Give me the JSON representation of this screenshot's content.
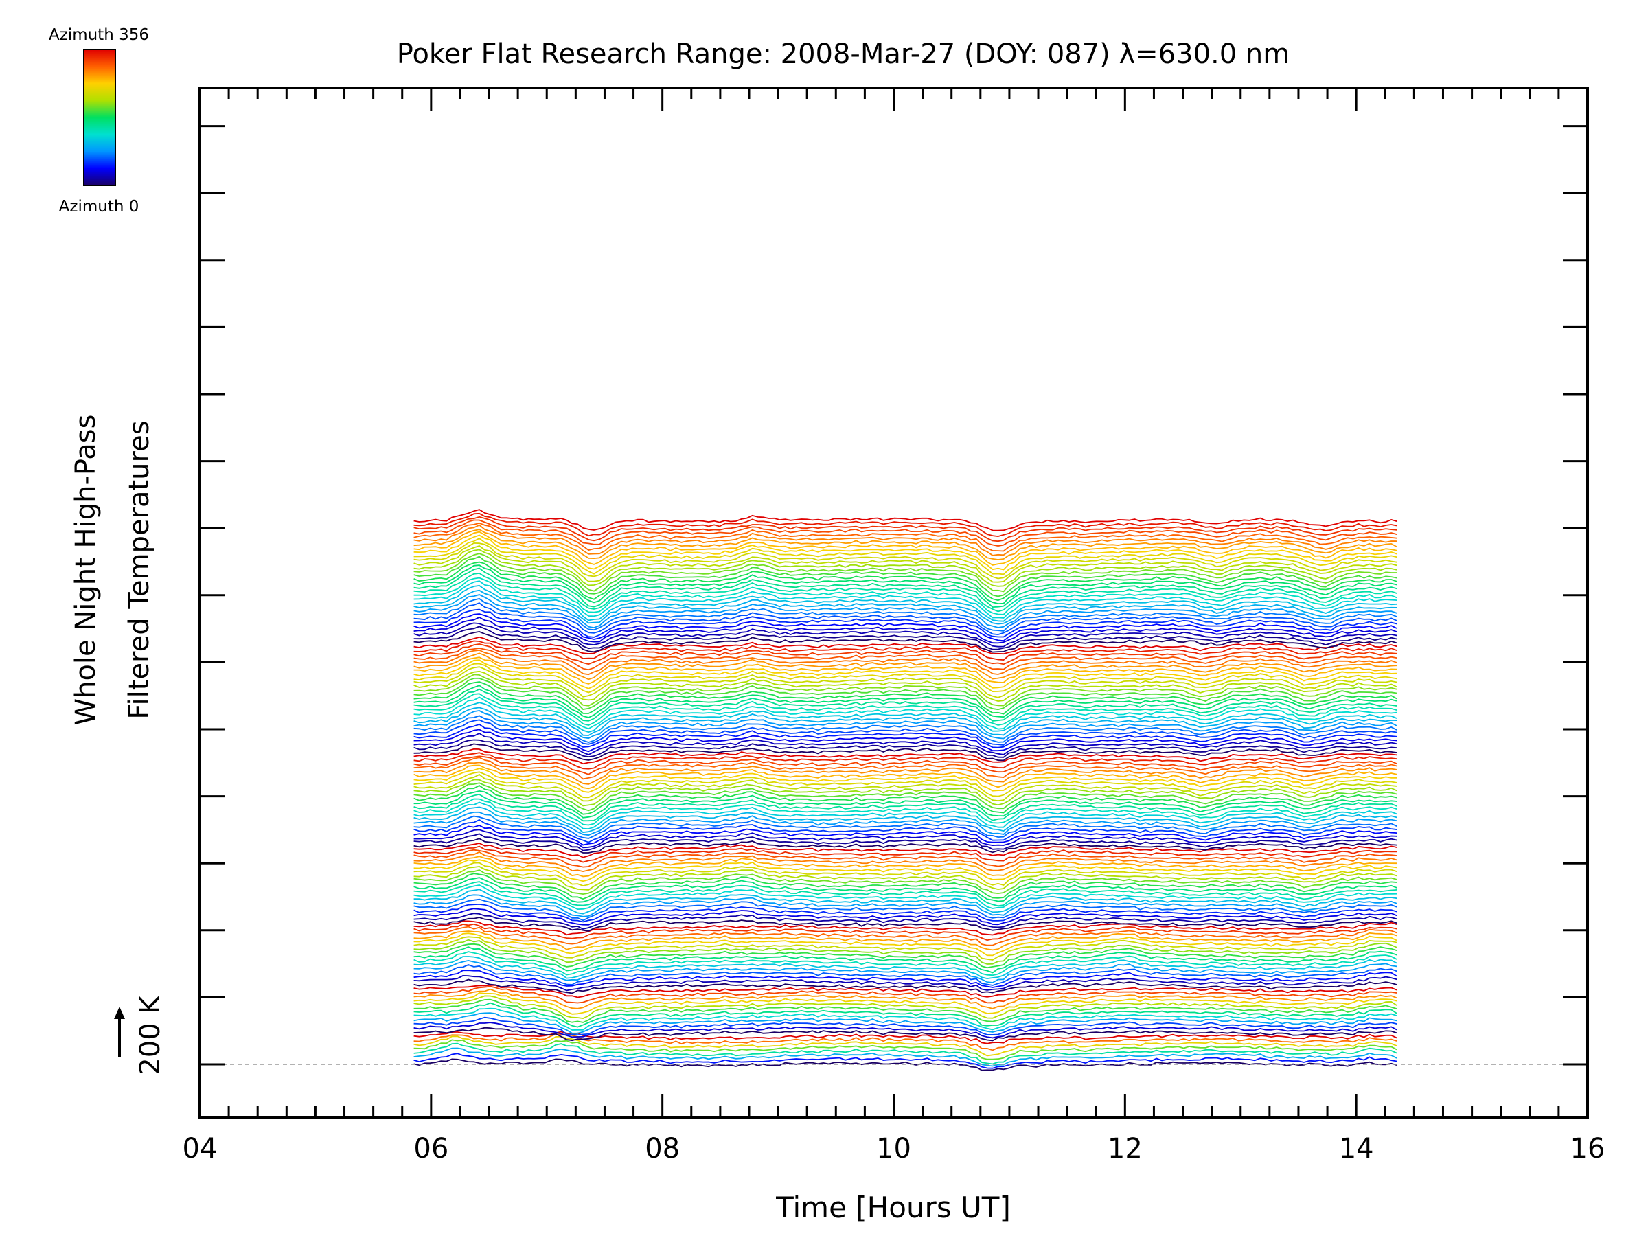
{
  "chart_data": {
    "type": "line",
    "title": "Poker Flat Research Range: 2008-Mar-27 (DOY: 087) λ=630.0 nm",
    "xlabel": "Time [Hours UT]",
    "ylabel_line1": "Whole Night High-Pass",
    "ylabel_line2": "Filtered Temperatures",
    "scale_label": "200 K",
    "xlim": [
      4,
      16
    ],
    "x_ticks": [
      "04",
      "06",
      "08",
      "10",
      "12",
      "14",
      "16"
    ],
    "data_range": [
      5.85,
      14.35
    ],
    "grid": false,
    "colorbar": {
      "top_label": "Azimuth 356",
      "bottom_label": "Azimuth 0",
      "colormap": "rainbow",
      "colors": [
        "#1a0066",
        "#0000ff",
        "#0096ff",
        "#00e0d0",
        "#00e060",
        "#b0e000",
        "#ffd000",
        "#ff6000",
        "#e00000"
      ]
    },
    "rings": [
      {
        "traces": 8,
        "events": [
          [
            6.2,
            0.9
          ],
          [
            7.15,
            0.8
          ],
          [
            10.85,
            -1.2
          ],
          [
            14.15,
            0.6
          ]
        ]
      },
      {
        "traces": 12,
        "events": [
          [
            6.5,
            1.0
          ],
          [
            7.25,
            -1.5
          ],
          [
            10.85,
            -1.3
          ],
          [
            14.2,
            0.5
          ]
        ]
      },
      {
        "traces": 16,
        "events": [
          [
            6.35,
            1.2
          ],
          [
            7.2,
            -1.2
          ],
          [
            10.85,
            -1.5
          ],
          [
            12.0,
            0.5
          ],
          [
            14.2,
            0.8
          ]
        ]
      },
      {
        "traces": 20,
        "events": [
          [
            6.4,
            1.4
          ],
          [
            7.3,
            -1.6
          ],
          [
            8.7,
            0.7
          ],
          [
            10.9,
            -1.8
          ],
          [
            13.6,
            -0.8
          ]
        ]
      },
      {
        "traces": 24,
        "events": [
          [
            6.4,
            1.6
          ],
          [
            7.35,
            -2.0
          ],
          [
            8.75,
            0.8
          ],
          [
            10.9,
            -2.0
          ],
          [
            12.7,
            -0.9
          ],
          [
            13.6,
            -1.0
          ]
        ]
      },
      {
        "traces": 28,
        "events": [
          [
            6.4,
            1.8
          ],
          [
            7.35,
            -2.2
          ],
          [
            8.8,
            0.9
          ],
          [
            10.9,
            -2.2
          ],
          [
            12.7,
            -1.0
          ],
          [
            13.6,
            -1.2
          ]
        ]
      },
      {
        "traces": 32,
        "events": [
          [
            6.4,
            2.0
          ],
          [
            7.4,
            -2.4
          ],
          [
            8.8,
            1.0
          ],
          [
            10.9,
            -2.4
          ],
          [
            12.8,
            -1.1
          ],
          [
            13.7,
            -1.3
          ]
        ]
      }
    ]
  }
}
